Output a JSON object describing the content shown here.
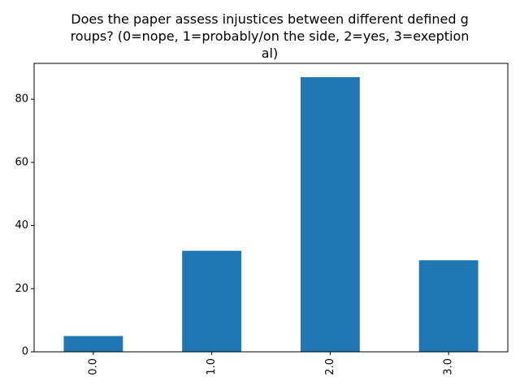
{
  "colors": {
    "bar": "#1f77b4",
    "axis": "#000000",
    "background": "#ffffff"
  },
  "chart_data": {
    "type": "bar",
    "title_lines": [
      "Does the paper assess injustices between different defined g",
      "roups? (0=nope, 1=probably/on the side, 2=yes, 3=exeption",
      "al)"
    ],
    "categories": [
      "0.0",
      "1.0",
      "2.0",
      "3.0"
    ],
    "values": [
      5,
      32,
      87,
      29
    ],
    "ylim": [
      0,
      91.35
    ],
    "yticks": [
      0,
      20,
      40,
      60,
      80
    ],
    "xlabel": "",
    "ylabel": "",
    "grid": false,
    "legend": false
  }
}
